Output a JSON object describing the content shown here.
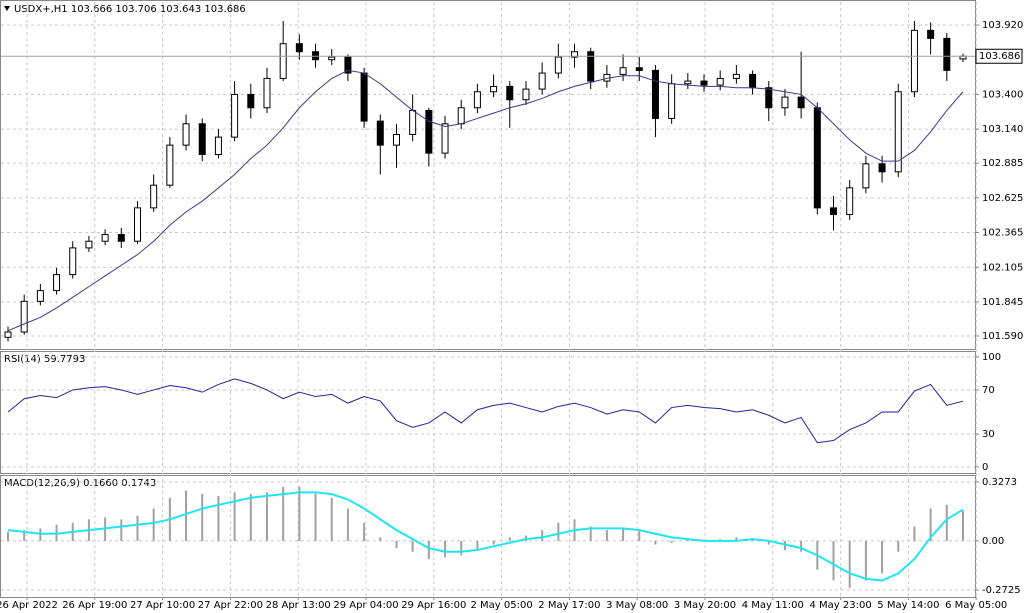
{
  "chart_data": [
    {
      "type": "candlestick",
      "title": "USDX+,H1 103.666 103.706 103.643 103.686",
      "open": [
        101.58,
        101.62,
        101.85,
        101.93,
        102.05,
        102.25,
        102.3,
        102.35,
        102.3,
        102.55,
        102.72,
        103.02,
        103.18,
        102.95,
        103.08,
        103.4,
        103.3,
        103.52,
        103.78,
        103.72,
        103.66,
        103.68,
        103.56,
        103.2,
        103.02,
        103.1,
        103.28,
        102.96,
        103.18,
        103.3,
        103.42,
        103.46,
        103.36,
        103.44,
        103.56,
        103.68,
        103.72,
        103.5,
        103.55,
        103.6,
        103.58,
        103.22,
        103.48,
        103.5,
        103.47,
        103.52,
        103.55,
        103.45,
        103.3,
        103.38,
        103.3,
        102.55,
        102.5,
        102.7,
        102.88,
        102.82,
        103.42,
        103.88,
        103.82,
        103.666
      ],
      "high": [
        101.66,
        101.9,
        101.98,
        102.1,
        102.3,
        102.34,
        102.39,
        102.4,
        102.6,
        102.8,
        103.08,
        103.25,
        103.22,
        103.14,
        103.5,
        103.48,
        103.6,
        103.95,
        103.85,
        103.78,
        103.74,
        103.7,
        103.6,
        103.25,
        103.18,
        103.4,
        103.3,
        103.24,
        103.36,
        103.48,
        103.55,
        103.5,
        103.5,
        103.64,
        103.78,
        103.78,
        103.75,
        103.62,
        103.7,
        103.68,
        103.62,
        103.55,
        103.56,
        103.55,
        103.58,
        103.62,
        103.58,
        103.5,
        103.44,
        103.72,
        103.34,
        102.64,
        102.76,
        102.94,
        102.94,
        103.48,
        103.95,
        103.94,
        103.86,
        103.706
      ],
      "low": [
        101.55,
        101.6,
        101.82,
        101.9,
        102.02,
        102.22,
        102.27,
        102.25,
        102.28,
        102.52,
        102.7,
        102.98,
        102.9,
        102.92,
        103.05,
        103.22,
        103.26,
        103.5,
        103.66,
        103.6,
        103.62,
        103.5,
        103.15,
        102.8,
        102.85,
        103.05,
        102.86,
        102.92,
        103.14,
        103.26,
        103.38,
        103.15,
        103.32,
        103.4,
        103.52,
        103.6,
        103.44,
        103.45,
        103.5,
        103.5,
        103.08,
        103.18,
        103.44,
        103.42,
        103.43,
        103.48,
        103.4,
        103.2,
        103.24,
        103.22,
        102.5,
        102.38,
        102.46,
        102.66,
        102.74,
        102.78,
        103.38,
        103.7,
        103.5,
        103.643
      ],
      "close": [
        101.62,
        101.85,
        101.93,
        102.05,
        102.25,
        102.3,
        102.35,
        102.3,
        102.55,
        102.72,
        103.02,
        103.18,
        102.95,
        103.08,
        103.4,
        103.3,
        103.52,
        103.78,
        103.72,
        103.66,
        103.68,
        103.56,
        103.2,
        103.02,
        103.1,
        103.28,
        102.96,
        103.18,
        103.3,
        103.42,
        103.46,
        103.36,
        103.44,
        103.56,
        103.68,
        103.72,
        103.5,
        103.55,
        103.6,
        103.58,
        103.22,
        103.48,
        103.5,
        103.47,
        103.52,
        103.55,
        103.45,
        103.3,
        103.38,
        103.3,
        102.55,
        102.5,
        102.7,
        102.88,
        102.82,
        103.42,
        103.88,
        103.82,
        103.58,
        103.686
      ],
      "color_up": "#ffffff",
      "color_down": "#000000",
      "overlay": {
        "color": "#3a3a8c",
        "values": [
          101.63,
          101.68,
          101.73,
          101.8,
          101.88,
          101.96,
          102.04,
          102.12,
          102.2,
          102.3,
          102.42,
          102.52,
          102.6,
          102.7,
          102.8,
          102.92,
          103.02,
          103.15,
          103.3,
          103.42,
          103.52,
          103.58,
          103.56,
          103.48,
          103.38,
          103.28,
          103.2,
          103.16,
          103.18,
          103.22,
          103.26,
          103.3,
          103.33,
          103.37,
          103.42,
          103.46,
          103.49,
          103.52,
          103.54,
          103.54,
          103.5,
          103.48,
          103.47,
          103.46,
          103.46,
          103.45,
          103.45,
          103.44,
          103.42,
          103.4,
          103.3,
          103.18,
          103.06,
          102.96,
          102.9,
          102.9,
          102.98,
          103.12,
          103.28,
          103.42
        ]
      },
      "last_price": 103.686,
      "ylim": [
        101.5,
        104.07
      ],
      "yticks": [
        {
          "value": 103.92,
          "label": "103.920"
        },
        {
          "value": 103.4,
          "label": "103.400"
        },
        {
          "value": 103.14,
          "label": "103.140"
        },
        102.885,
        102.625,
        102.365,
        {
          "value": 102.105,
          "label": "102.105"
        },
        101.845,
        {
          "value": 101.59,
          "label": "101.590"
        }
      ],
      "grid": true,
      "x_labels": [
        "26 Apr 2022",
        "26 Apr 19:00",
        "27 Apr 10:00",
        "27 Apr 22:00",
        "28 Apr 13:00",
        "29 Apr 04:00",
        "29 Apr 16:00",
        "2 May 05:00",
        "2 May 17:00",
        "3 May 08:00",
        "3 May 20:00",
        "4 May 11:00",
        "4 May 23:00",
        "5 May 14:00",
        "6 May 05:00"
      ]
    },
    {
      "type": "line",
      "title": "RSI(14) 59.7793",
      "color": "#22229a",
      "values": [
        50,
        62,
        65,
        63,
        70,
        72,
        73,
        70,
        66,
        70,
        74,
        72,
        68,
        75,
        80,
        76,
        70,
        62,
        68,
        64,
        66,
        58,
        64,
        60,
        42,
        36,
        40,
        50,
        40,
        52,
        56,
        58,
        54,
        50,
        55,
        58,
        54,
        48,
        52,
        50,
        40,
        54,
        56,
        54,
        53,
        50,
        52,
        47,
        40,
        45,
        22,
        24,
        34,
        40,
        50,
        50,
        69,
        75,
        56,
        59.7793
      ],
      "ylim": [
        -5.5,
        104.5
      ],
      "yticks": [
        100,
        70,
        30,
        0
      ],
      "grid": true
    },
    {
      "type": "macd",
      "title": "MACD(12,26,9) 0.1660 0.1743",
      "histogram": {
        "color": "#a0a0a0",
        "values": [
          0.05,
          0.06,
          0.07,
          0.09,
          0.1,
          0.12,
          0.13,
          0.12,
          0.14,
          0.18,
          0.24,
          0.28,
          0.26,
          0.25,
          0.27,
          0.26,
          0.27,
          0.3,
          0.3,
          0.27,
          0.24,
          0.18,
          0.1,
          0.02,
          -0.04,
          -0.06,
          -0.1,
          -0.09,
          -0.08,
          -0.05,
          -0.02,
          0.02,
          0.03,
          0.06,
          0.1,
          0.12,
          0.08,
          0.06,
          0.07,
          0.06,
          -0.02,
          -0.01,
          0.01,
          0.0,
          0.01,
          0.02,
          0.01,
          -0.02,
          -0.05,
          -0.06,
          -0.16,
          -0.22,
          -0.26,
          -0.22,
          -0.18,
          -0.06,
          0.08,
          0.18,
          0.2,
          0.166
        ]
      },
      "signal": {
        "color": "#1ee6f0",
        "values": [
          0.06,
          0.05,
          0.04,
          0.04,
          0.05,
          0.06,
          0.07,
          0.08,
          0.09,
          0.1,
          0.12,
          0.15,
          0.18,
          0.2,
          0.22,
          0.24,
          0.25,
          0.26,
          0.27,
          0.27,
          0.26,
          0.23,
          0.18,
          0.12,
          0.06,
          0.01,
          -0.04,
          -0.06,
          -0.06,
          -0.05,
          -0.03,
          -0.01,
          0.01,
          0.02,
          0.04,
          0.06,
          0.07,
          0.07,
          0.07,
          0.06,
          0.04,
          0.02,
          0.01,
          0.0,
          0.0,
          0.0,
          0.01,
          0.0,
          -0.02,
          -0.04,
          -0.08,
          -0.13,
          -0.18,
          -0.21,
          -0.22,
          -0.18,
          -0.1,
          0.02,
          0.12,
          0.1743
        ]
      },
      "ylim": [
        -0.3114,
        0.3606
      ],
      "yticks": [
        0.3273,
        {
          "value": 0,
          "label": "0.00"
        },
        -0.2725
      ],
      "grid": true
    }
  ]
}
